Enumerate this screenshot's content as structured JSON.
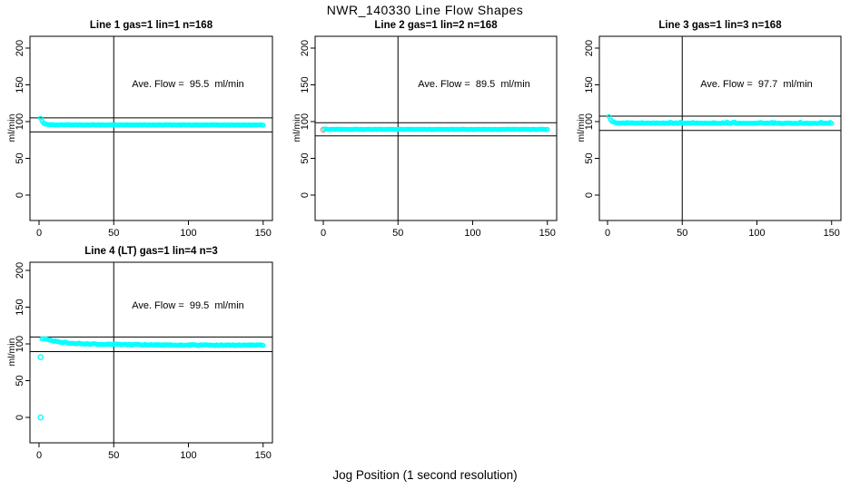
{
  "figure": {
    "title": "NWR_140330  Line Flow Shapes",
    "x_axis_label": "Jog Position (1 second resolution)",
    "colors": {
      "marker_cyan": "#00FFFF",
      "outlier_salmon": "#FA8072",
      "axis_black": "#000000",
      "background": "#FFFFFF"
    }
  },
  "chart_data": [
    {
      "type": "scatter",
      "title": "Line 1 gas=1 lin=1 n=168",
      "annotation": "Ave. Flow =  95.5  ml/min",
      "ave_flow_ml_min": 95.5,
      "n": 168,
      "ylabel": "ml/min",
      "xlim": [
        0,
        150
      ],
      "ylim": [
        0,
        200
      ],
      "x_ticks": [
        0,
        50,
        100,
        150
      ],
      "y_ticks": [
        0,
        50,
        100,
        150,
        200
      ],
      "vline_x": 50,
      "hlines": [
        105.05,
        85.95
      ],
      "series": [
        {
          "name": "flow",
          "color": "#00FFFF",
          "keypoints": [
            [
              1,
              104.5
            ],
            [
              2,
              100.5
            ],
            [
              3,
              98
            ],
            [
              4,
              96.8
            ],
            [
              6,
              96
            ],
            [
              10,
              95.6
            ],
            [
              150,
              95.4
            ]
          ],
          "x_step": 1,
          "noise": 0.3,
          "noise_up": 0,
          "spike_prob": 0
        }
      ],
      "outliers": []
    },
    {
      "type": "scatter",
      "title": "Line 2 gas=1 lin=2 n=168",
      "annotation": "Ave. Flow =  89.5  ml/min",
      "ave_flow_ml_min": 89.5,
      "n": 168,
      "ylabel": "ml/min",
      "xlim": [
        0,
        150
      ],
      "ylim": [
        0,
        200
      ],
      "x_ticks": [
        0,
        50,
        100,
        150
      ],
      "y_ticks": [
        0,
        50,
        100,
        150,
        200
      ],
      "vline_x": 50,
      "hlines": [
        98.45,
        80.55
      ],
      "series": [
        {
          "name": "flow",
          "color": "#00FFFF",
          "keypoints": [
            [
              1,
              89.8
            ],
            [
              3,
              89.5
            ],
            [
              150,
              89.4
            ]
          ],
          "x_step": 1,
          "noise": 0.25,
          "noise_up": 0,
          "spike_prob": 0
        }
      ],
      "outliers": [
        {
          "x": 0,
          "y": 89,
          "color": "#FA8072"
        }
      ]
    },
    {
      "type": "scatter",
      "title": "Line 3 gas=1 lin=3 n=168",
      "annotation": "Ave. Flow =  97.7  ml/min",
      "ave_flow_ml_min": 97.7,
      "n": 168,
      "ylabel": "ml/min",
      "xlim": [
        0,
        150
      ],
      "ylim": [
        0,
        200
      ],
      "x_ticks": [
        0,
        50,
        100,
        150
      ],
      "y_ticks": [
        0,
        50,
        100,
        150,
        200
      ],
      "vline_x": 50,
      "hlines": [
        107.47,
        87.93
      ],
      "series": [
        {
          "name": "flow",
          "color": "#00FFFF",
          "keypoints": [
            [
              1,
              106.5
            ],
            [
              2,
              103
            ],
            [
              3,
              100.5
            ],
            [
              4,
              99.2
            ],
            [
              6,
              98.4
            ],
            [
              10,
              98
            ],
            [
              150,
              97.6
            ]
          ],
          "x_step": 1,
          "noise": 0.35,
          "noise_up": 1.6,
          "spike_prob": 0.18
        }
      ],
      "outliers": []
    },
    {
      "type": "scatter",
      "title": "Line 4 (LT) gas=1 lin=4 n=3",
      "annotation": "Ave. Flow =  99.5  ml/min",
      "ave_flow_ml_min": 99.5,
      "n": 3,
      "ylabel": "ml/min",
      "xlim": [
        0,
        150
      ],
      "ylim": [
        0,
        200
      ],
      "x_ticks": [
        0,
        50,
        100,
        150
      ],
      "y_ticks": [
        0,
        50,
        100,
        150,
        200
      ],
      "vline_x": 50,
      "hlines": [
        109.45,
        89.55
      ],
      "series": [
        {
          "name": "flow",
          "color": "#00FFFF",
          "keypoints": [
            [
              2,
              107.3
            ],
            [
              4,
              106.5
            ],
            [
              6,
              105.5
            ],
            [
              8,
              104.8
            ],
            [
              10,
              104
            ],
            [
              13,
              103
            ],
            [
              16,
              102.2
            ],
            [
              20,
              101.4
            ],
            [
              25,
              100.7
            ],
            [
              30,
              100.2
            ],
            [
              35,
              99.9
            ],
            [
              40,
              99.7
            ],
            [
              45,
              99.5
            ],
            [
              50,
              99.4
            ],
            [
              60,
              99
            ],
            [
              70,
              98.8
            ],
            [
              85,
              98.6
            ],
            [
              100,
              98.5
            ],
            [
              120,
              98.3
            ],
            [
              150,
              98.2
            ]
          ],
          "x_step": 1,
          "noise": 0.6,
          "noise_up": 0,
          "spike_prob": 0
        }
      ],
      "outliers": [
        {
          "x": 1,
          "y": 82,
          "color": "#00FFFF"
        },
        {
          "x": 1,
          "y": 0,
          "color": "#00FFFF"
        }
      ]
    }
  ]
}
